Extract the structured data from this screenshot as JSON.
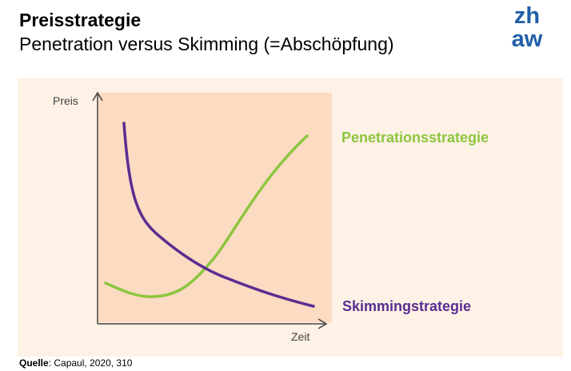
{
  "header": {
    "title": "Preisstrategie",
    "subtitle": "Penetration versus Skimming (=Abschöpfung)"
  },
  "logo": {
    "line1": "zh",
    "line2": "aw",
    "color": "#1f5ea8"
  },
  "diagram": {
    "y_axis_label": "Preis",
    "x_axis_label": "Zeit",
    "plot_area_color": "#fbdbc2",
    "panel_color": "#fef1e5",
    "curves": [
      {
        "label": "Penetrationsstrategie",
        "color": "#8cc63f"
      },
      {
        "label": "Skimmingstrategie",
        "color": "#5a2d91"
      }
    ]
  },
  "footer": {
    "source_label": "Quelle",
    "source_text": ": Capaul, 2020, 310"
  }
}
